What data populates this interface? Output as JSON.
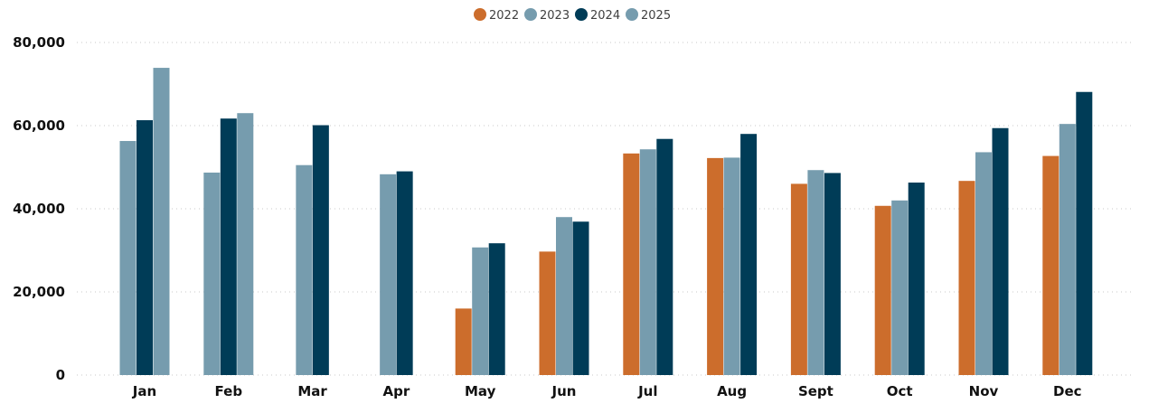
{
  "chart_data": {
    "type": "bar",
    "categories": [
      "Jan",
      "Feb",
      "Mar",
      "Apr",
      "May",
      "Jun",
      "Jul",
      "Aug",
      "Sept",
      "Oct",
      "Nov",
      "Dec"
    ],
    "series": [
      {
        "name": "2022",
        "color": "#CC6D2C",
        "values": [
          null,
          null,
          null,
          null,
          16000,
          29700,
          53300,
          52200,
          46000,
          40700,
          46700,
          52700
        ]
      },
      {
        "name": "2023",
        "color": "#769CAE",
        "values": [
          56300,
          48700,
          50500,
          48300,
          30700,
          38000,
          54300,
          52300,
          49300,
          42000,
          53600,
          60400
        ]
      },
      {
        "name": "2024",
        "color": "#003C57",
        "values": [
          61300,
          61700,
          60100,
          49000,
          31700,
          36900,
          56800,
          58000,
          48600,
          46300,
          59400,
          68100
        ]
      },
      {
        "name": "2025",
        "color": "#769CAE",
        "values": [
          73900,
          63000,
          null,
          null,
          null,
          null,
          null,
          null,
          null,
          null,
          null,
          null
        ]
      }
    ],
    "yticks": [
      "0",
      "20,000",
      "40,000",
      "60,000",
      "80,000"
    ],
    "ylim": [
      0,
      80000
    ],
    "title": "",
    "xlabel": "",
    "ylabel": "",
    "legend_position": "top-center",
    "grid": "horizontal-dotted"
  }
}
